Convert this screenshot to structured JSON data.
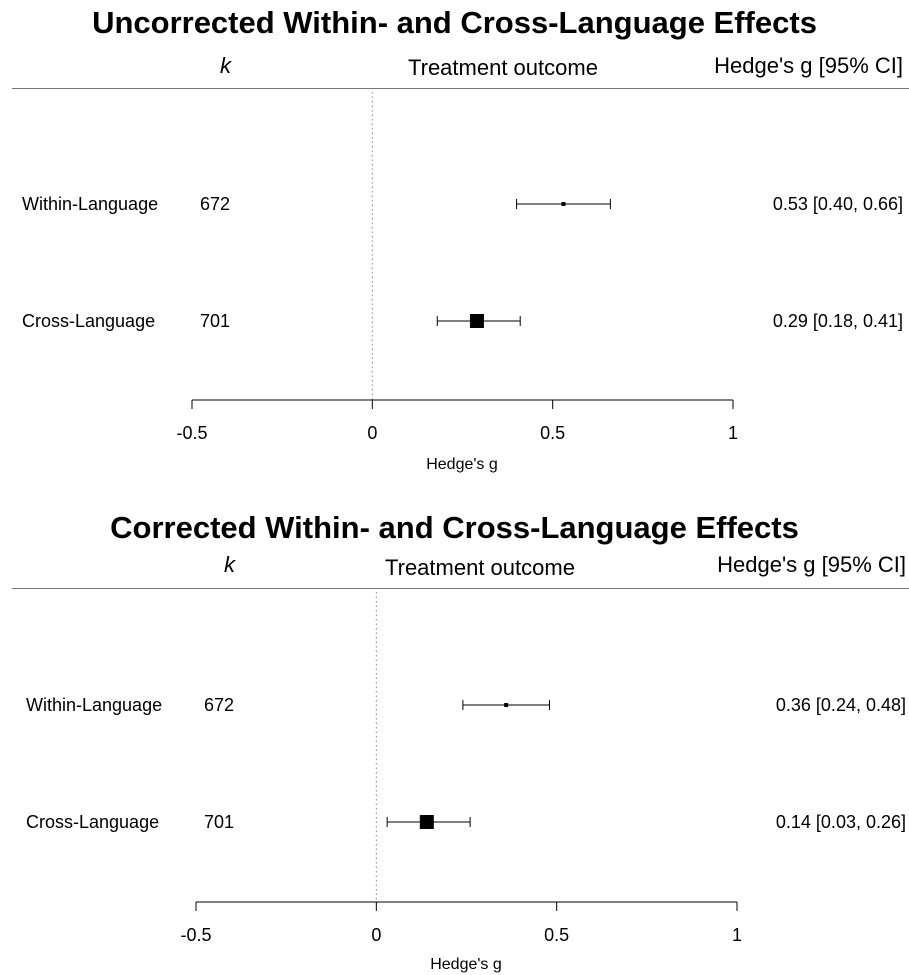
{
  "chart_data": [
    {
      "type": "forest",
      "title": "Uncorrected Within- and Cross-Language Effects",
      "headers": {
        "k": "k",
        "outcome": "Treatment outcome",
        "estimate": "Hedge's g [95% CI]"
      },
      "xlabel": "Hedge's g",
      "xlim": [
        -0.5,
        1
      ],
      "ticks": [
        -0.5,
        0,
        0.5,
        1
      ],
      "tick_labels": [
        "-0.5",
        "0",
        "0.5",
        "1"
      ],
      "reference_line": 0,
      "rows": [
        {
          "label": "Within-Language",
          "k": "672",
          "estimate": 0.53,
          "ci_low": 0.4,
          "ci_high": 0.66,
          "text": "0.53 [0.40, 0.66]",
          "weight": "small"
        },
        {
          "label": "Cross-Language",
          "k": "701",
          "estimate": 0.29,
          "ci_low": 0.18,
          "ci_high": 0.41,
          "text": "0.29 [0.18, 0.41]",
          "weight": "large"
        }
      ]
    },
    {
      "type": "forest",
      "title": "Corrected Within- and Cross-Language Effects",
      "headers": {
        "k": "k",
        "outcome": "Treatment outcome",
        "estimate": "Hedge's g [95% CI]"
      },
      "xlabel": "Hedge's g",
      "xlim": [
        -0.5,
        1
      ],
      "ticks": [
        -0.5,
        0,
        0.5,
        1
      ],
      "tick_labels": [
        "-0.5",
        "0",
        "0.5",
        "1"
      ],
      "reference_line": 0,
      "rows": [
        {
          "label": "Within-Language",
          "k": "672",
          "estimate": 0.36,
          "ci_low": 0.24,
          "ci_high": 0.48,
          "text": "0.36 [0.24, 0.48]",
          "weight": "small"
        },
        {
          "label": "Cross-Language",
          "k": "701",
          "estimate": 0.14,
          "ci_low": 0.03,
          "ci_high": 0.26,
          "text": "0.14 [0.03, 0.26]",
          "weight": "large"
        }
      ]
    }
  ]
}
